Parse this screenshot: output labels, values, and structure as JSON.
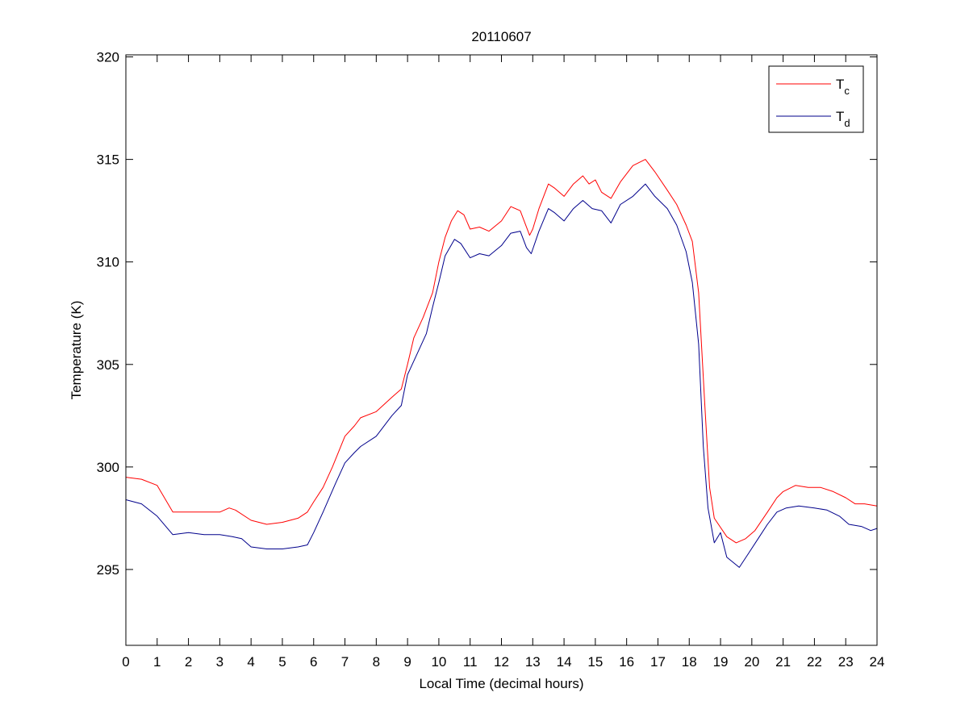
{
  "chart_data": {
    "type": "line",
    "title": "20110607",
    "xlabel": "Local Time (decimal hours)",
    "ylabel": "Temperature (K)",
    "xlim": [
      0,
      24
    ],
    "ylim": [
      291.3,
      320.1
    ],
    "xticks": [
      0,
      1,
      2,
      3,
      4,
      5,
      6,
      7,
      8,
      9,
      10,
      11,
      12,
      13,
      14,
      15,
      16,
      17,
      18,
      19,
      20,
      21,
      22,
      23,
      24
    ],
    "yticks": [
      295,
      300,
      305,
      310,
      315,
      320
    ],
    "grid": false,
    "legend_position": "top-right",
    "series": [
      {
        "name": "T",
        "name_subscript": "c",
        "color": "#ff0000",
        "points": [
          [
            0,
            299.5
          ],
          [
            0.5,
            299.4
          ],
          [
            1,
            299.1
          ],
          [
            1.5,
            297.8
          ],
          [
            2,
            297.8
          ],
          [
            2.5,
            297.8
          ],
          [
            3,
            297.8
          ],
          [
            3.3,
            298.0
          ],
          [
            3.5,
            297.9
          ],
          [
            4,
            297.4
          ],
          [
            4.5,
            297.2
          ],
          [
            5,
            297.3
          ],
          [
            5.5,
            297.5
          ],
          [
            5.8,
            297.8
          ],
          [
            6,
            298.3
          ],
          [
            6.3,
            299.0
          ],
          [
            6.6,
            300.0
          ],
          [
            7,
            301.5
          ],
          [
            7.3,
            302.0
          ],
          [
            7.5,
            302.4
          ],
          [
            8,
            302.7
          ],
          [
            8.5,
            303.4
          ],
          [
            8.8,
            303.8
          ],
          [
            9,
            305.0
          ],
          [
            9.2,
            306.3
          ],
          [
            9.5,
            307.3
          ],
          [
            9.8,
            308.5
          ],
          [
            10,
            310.0
          ],
          [
            10.2,
            311.2
          ],
          [
            10.4,
            312.0
          ],
          [
            10.6,
            312.5
          ],
          [
            10.8,
            312.3
          ],
          [
            11,
            311.6
          ],
          [
            11.3,
            311.7
          ],
          [
            11.6,
            311.5
          ],
          [
            12,
            312.0
          ],
          [
            12.3,
            312.7
          ],
          [
            12.6,
            312.5
          ],
          [
            12.9,
            311.3
          ],
          [
            13,
            311.6
          ],
          [
            13.2,
            312.6
          ],
          [
            13.5,
            313.8
          ],
          [
            13.7,
            313.6
          ],
          [
            14,
            313.2
          ],
          [
            14.3,
            313.8
          ],
          [
            14.6,
            314.2
          ],
          [
            14.8,
            313.8
          ],
          [
            15,
            314.0
          ],
          [
            15.2,
            313.4
          ],
          [
            15.5,
            313.1
          ],
          [
            15.8,
            313.9
          ],
          [
            16.2,
            314.7
          ],
          [
            16.6,
            315.0
          ],
          [
            16.9,
            314.4
          ],
          [
            17.3,
            313.5
          ],
          [
            17.6,
            312.8
          ],
          [
            17.9,
            311.8
          ],
          [
            18.1,
            311.0
          ],
          [
            18.3,
            308.5
          ],
          [
            18.5,
            303.0
          ],
          [
            18.65,
            299.0
          ],
          [
            18.8,
            297.5
          ],
          [
            19.2,
            296.6
          ],
          [
            19.5,
            296.3
          ],
          [
            19.8,
            296.5
          ],
          [
            20.1,
            296.9
          ],
          [
            20.5,
            297.8
          ],
          [
            20.8,
            298.5
          ],
          [
            21,
            298.8
          ],
          [
            21.4,
            299.1
          ],
          [
            21.8,
            299.0
          ],
          [
            22.2,
            299.0
          ],
          [
            22.6,
            298.8
          ],
          [
            23,
            298.5
          ],
          [
            23.3,
            298.2
          ],
          [
            23.6,
            298.2
          ],
          [
            24,
            298.1
          ]
        ]
      },
      {
        "name": "T",
        "name_subscript": "d",
        "color": "#00008b",
        "points": [
          [
            0,
            298.4
          ],
          [
            0.5,
            298.2
          ],
          [
            1,
            297.6
          ],
          [
            1.5,
            296.7
          ],
          [
            2,
            296.8
          ],
          [
            2.5,
            296.7
          ],
          [
            3,
            296.7
          ],
          [
            3.4,
            296.6
          ],
          [
            3.7,
            296.5
          ],
          [
            4,
            296.1
          ],
          [
            4.5,
            296.0
          ],
          [
            5,
            296.0
          ],
          [
            5.5,
            296.1
          ],
          [
            5.8,
            296.2
          ],
          [
            6,
            296.8
          ],
          [
            6.3,
            297.8
          ],
          [
            6.7,
            299.2
          ],
          [
            7,
            300.2
          ],
          [
            7.3,
            300.7
          ],
          [
            7.5,
            301.0
          ],
          [
            8,
            301.5
          ],
          [
            8.5,
            302.5
          ],
          [
            8.8,
            303.0
          ],
          [
            9,
            304.5
          ],
          [
            9.3,
            305.5
          ],
          [
            9.6,
            306.5
          ],
          [
            9.8,
            307.8
          ],
          [
            10,
            309.0
          ],
          [
            10.2,
            310.3
          ],
          [
            10.5,
            311.1
          ],
          [
            10.7,
            310.9
          ],
          [
            11,
            310.2
          ],
          [
            11.3,
            310.4
          ],
          [
            11.6,
            310.3
          ],
          [
            12,
            310.8
          ],
          [
            12.3,
            311.4
          ],
          [
            12.6,
            311.5
          ],
          [
            12.8,
            310.7
          ],
          [
            12.95,
            310.4
          ],
          [
            13.2,
            311.5
          ],
          [
            13.5,
            312.6
          ],
          [
            13.7,
            312.4
          ],
          [
            14,
            312.0
          ],
          [
            14.3,
            312.6
          ],
          [
            14.6,
            313.0
          ],
          [
            14.9,
            312.6
          ],
          [
            15.2,
            312.5
          ],
          [
            15.5,
            311.9
          ],
          [
            15.8,
            312.8
          ],
          [
            16.2,
            313.2
          ],
          [
            16.6,
            313.8
          ],
          [
            16.9,
            313.2
          ],
          [
            17.3,
            312.6
          ],
          [
            17.6,
            311.8
          ],
          [
            17.9,
            310.5
          ],
          [
            18.1,
            309.0
          ],
          [
            18.3,
            306.0
          ],
          [
            18.45,
            301.0
          ],
          [
            18.6,
            298.0
          ],
          [
            18.8,
            296.3
          ],
          [
            19,
            296.8
          ],
          [
            19.2,
            295.6
          ],
          [
            19.6,
            295.1
          ],
          [
            19.9,
            295.8
          ],
          [
            20.2,
            296.5
          ],
          [
            20.5,
            297.2
          ],
          [
            20.8,
            297.8
          ],
          [
            21.1,
            298.0
          ],
          [
            21.5,
            298.1
          ],
          [
            22,
            298.0
          ],
          [
            22.4,
            297.9
          ],
          [
            22.8,
            297.6
          ],
          [
            23.1,
            297.2
          ],
          [
            23.5,
            297.1
          ],
          [
            23.8,
            296.9
          ],
          [
            24,
            297.0
          ]
        ]
      }
    ]
  }
}
